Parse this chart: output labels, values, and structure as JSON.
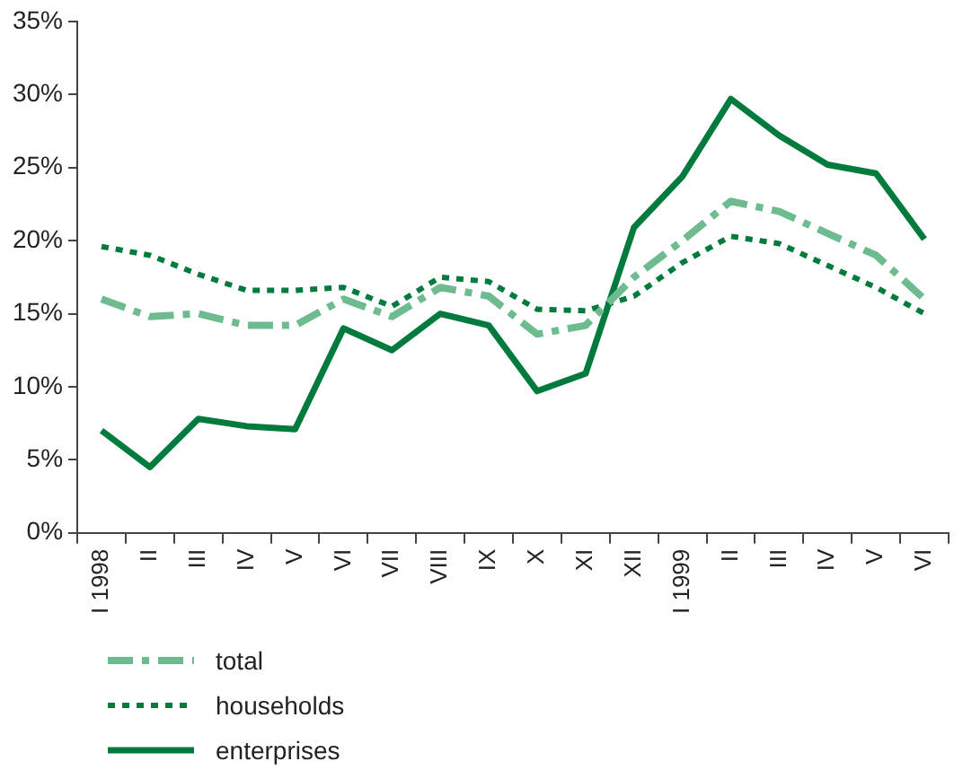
{
  "chart_data": {
    "type": "line",
    "categories": [
      "I 1998",
      "II",
      "III",
      "IV",
      "V",
      "VI",
      "VII",
      "VIII",
      "IX",
      "X",
      "XI",
      "XII",
      "I 1999",
      "II",
      "III",
      "IV",
      "V",
      "VI"
    ],
    "series": [
      {
        "name": "total",
        "color": "#6dbb8f",
        "line_style": "dashed",
        "values": [
          16,
          14.8,
          15,
          14.2,
          14.2,
          16,
          14.8,
          16.8,
          16.2,
          13.6,
          14.2,
          17.5,
          20,
          22.7,
          22,
          20.5,
          19,
          16
        ]
      },
      {
        "name": "households",
        "color": "#007a3d",
        "line_style": "dotted",
        "values": [
          19.6,
          19,
          17.7,
          16.6,
          16.6,
          16.8,
          15.5,
          17.5,
          17.2,
          15.3,
          15.2,
          16.2,
          18.5,
          20.3,
          19.8,
          18.3,
          16.8,
          15
        ]
      },
      {
        "name": "enterprises",
        "color": "#007a3d",
        "line_style": "solid",
        "values": [
          7,
          4.5,
          7.8,
          7.3,
          7.1,
          14,
          12.5,
          15,
          14.2,
          9.7,
          10.9,
          20.9,
          24.4,
          29.7,
          27.2,
          25.2,
          24.6,
          20.1
        ]
      }
    ],
    "ylim": [
      0,
      35
    ],
    "yticks": [
      {
        "value": 0,
        "label": "0%"
      },
      {
        "value": 5,
        "label": "5%"
      },
      {
        "value": 10,
        "label": "10%"
      },
      {
        "value": 15,
        "label": "15%"
      },
      {
        "value": 20,
        "label": "20%"
      },
      {
        "value": 25,
        "label": "25%"
      },
      {
        "value": 30,
        "label": "30%"
      },
      {
        "value": 35,
        "label": "35%"
      }
    ],
    "grid": false,
    "legend": "bottom",
    "marker": "none"
  }
}
